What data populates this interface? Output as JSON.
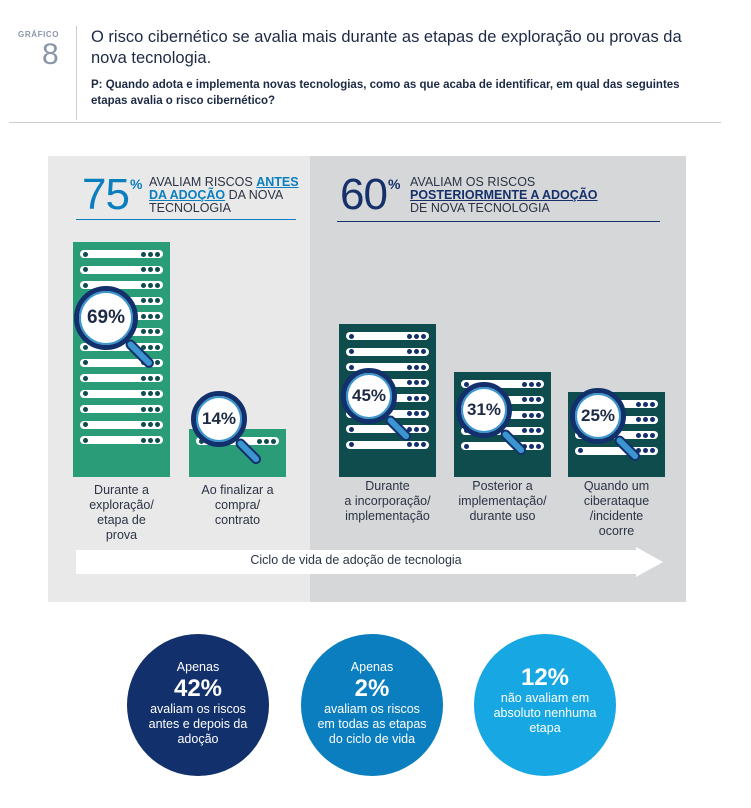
{
  "header": {
    "label": "GRÁFICO",
    "number": "8",
    "title": "O risco cibernético se avalia mais durante as etapas de exploração ou provas da nova tecnologia.",
    "question": "P: Quando adota e implementa novas tecnologias, como as que acaba de identificar, em qual das seguintes etapas  avalia  o risco cibernético?"
  },
  "left_head": {
    "value": "75",
    "unit": "%",
    "text_pre": "AVALIAM RISCOS ",
    "text_accent": "ANTES DA ADOÇÃO",
    "text_post": " DA NOVA TECNOLOGIA"
  },
  "right_head": {
    "value": "60",
    "unit": "%",
    "text_pre": "AVALIAM OS RISCOS ",
    "text_accent": "POSTERIORMENTE A ADOÇÃO",
    "text_post": " DE NOVA TECNOLOGIA"
  },
  "chart_data": {
    "type": "bar",
    "categories": [
      "Durante a exploração/ etapa de prova",
      "Ao finalizar a compra/ contrato",
      "Durante a incorporação/ implementação",
      "Posterior a implementação/ durante uso",
      "Quando um ciberataque /incidente ocorre"
    ],
    "values": [
      69,
      14,
      45,
      31,
      25
    ],
    "labels": [
      "69%",
      "14%",
      "45%",
      "31%",
      "25%"
    ],
    "groups": [
      "antes",
      "antes",
      "depois",
      "depois",
      "depois"
    ],
    "colors": {
      "antes": "#2a9d78",
      "depois": "#0e4c4e"
    }
  },
  "captions": [
    [
      "Durante a",
      "exploração/",
      "etapa de",
      "prova"
    ],
    [
      "Ao finalizar a",
      "compra/",
      "contrato"
    ],
    [
      "Durante",
      "a incorporação/",
      "implementação"
    ],
    [
      "Posterior a",
      "implementação/",
      "durante uso"
    ],
    [
      "Quando um",
      "ciberataque",
      "/incidente",
      "ocorre"
    ]
  ],
  "arrow_label": "Ciclo de vida de adoção de tecnologia",
  "circles": [
    {
      "pre": "Apenas",
      "value": "42%",
      "text": "avaliam os riscos antes e depois da adoção",
      "color": "#12306b"
    },
    {
      "pre": "Apenas",
      "value": "2%",
      "text": "avaliam os riscos em todas as etapas do ciclo de vida",
      "color": "#0a7ebf"
    },
    {
      "pre": "",
      "value": "12%",
      "text": "não avaliam em absoluto nenhuma etapa",
      "color": "#17a8e3"
    }
  ],
  "colors": {
    "navy": "#12306b",
    "teal_accent": "#0a7ebf",
    "lens_ring": "#12306b",
    "handle": "#3b95cf"
  }
}
